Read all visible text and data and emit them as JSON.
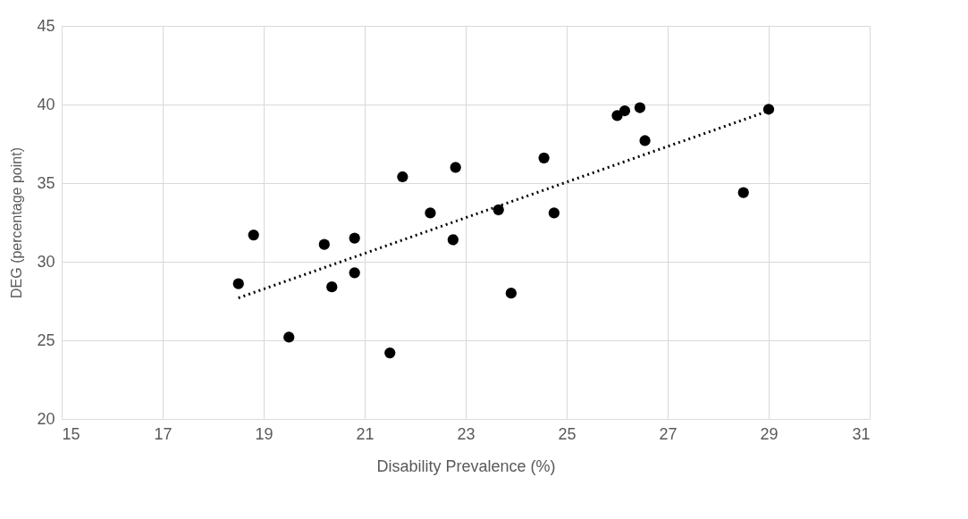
{
  "chart_data": {
    "type": "scatter",
    "xlabel": "Disability Prevalence (%)",
    "ylabel": "DEG (percentage point)",
    "xlim": [
      15,
      31
    ],
    "xticks": [
      15,
      17,
      19,
      21,
      23,
      25,
      27,
      29,
      31
    ],
    "ylim": [
      20,
      45
    ],
    "yticks": [
      20,
      25,
      30,
      35,
      40,
      45
    ],
    "grid": true,
    "marker": "circle",
    "series": [
      {
        "color": "#000000",
        "x": [
          18.5,
          18.8,
          19.5,
          20.2,
          20.35,
          20.8,
          20.8,
          21.5,
          21.75,
          22.3,
          22.75,
          22.8,
          23.65,
          23.9,
          24.55,
          24.75,
          26.0,
          26.15,
          26.45,
          26.55,
          28.5,
          29.0
        ],
        "values": [
          28.6,
          31.7,
          25.2,
          31.1,
          28.4,
          31.5,
          29.3,
          24.2,
          35.4,
          33.1,
          31.4,
          36.0,
          33.3,
          28.0,
          36.6,
          33.1,
          39.3,
          39.6,
          39.8,
          37.7,
          34.4,
          39.7
        ]
      },
      {
        "type": "line",
        "color": "#000000",
        "line_style": "dotted",
        "marker": "none",
        "x": [
          18.5,
          29.0
        ],
        "values": [
          27.7,
          39.6
        ]
      }
    ]
  }
}
